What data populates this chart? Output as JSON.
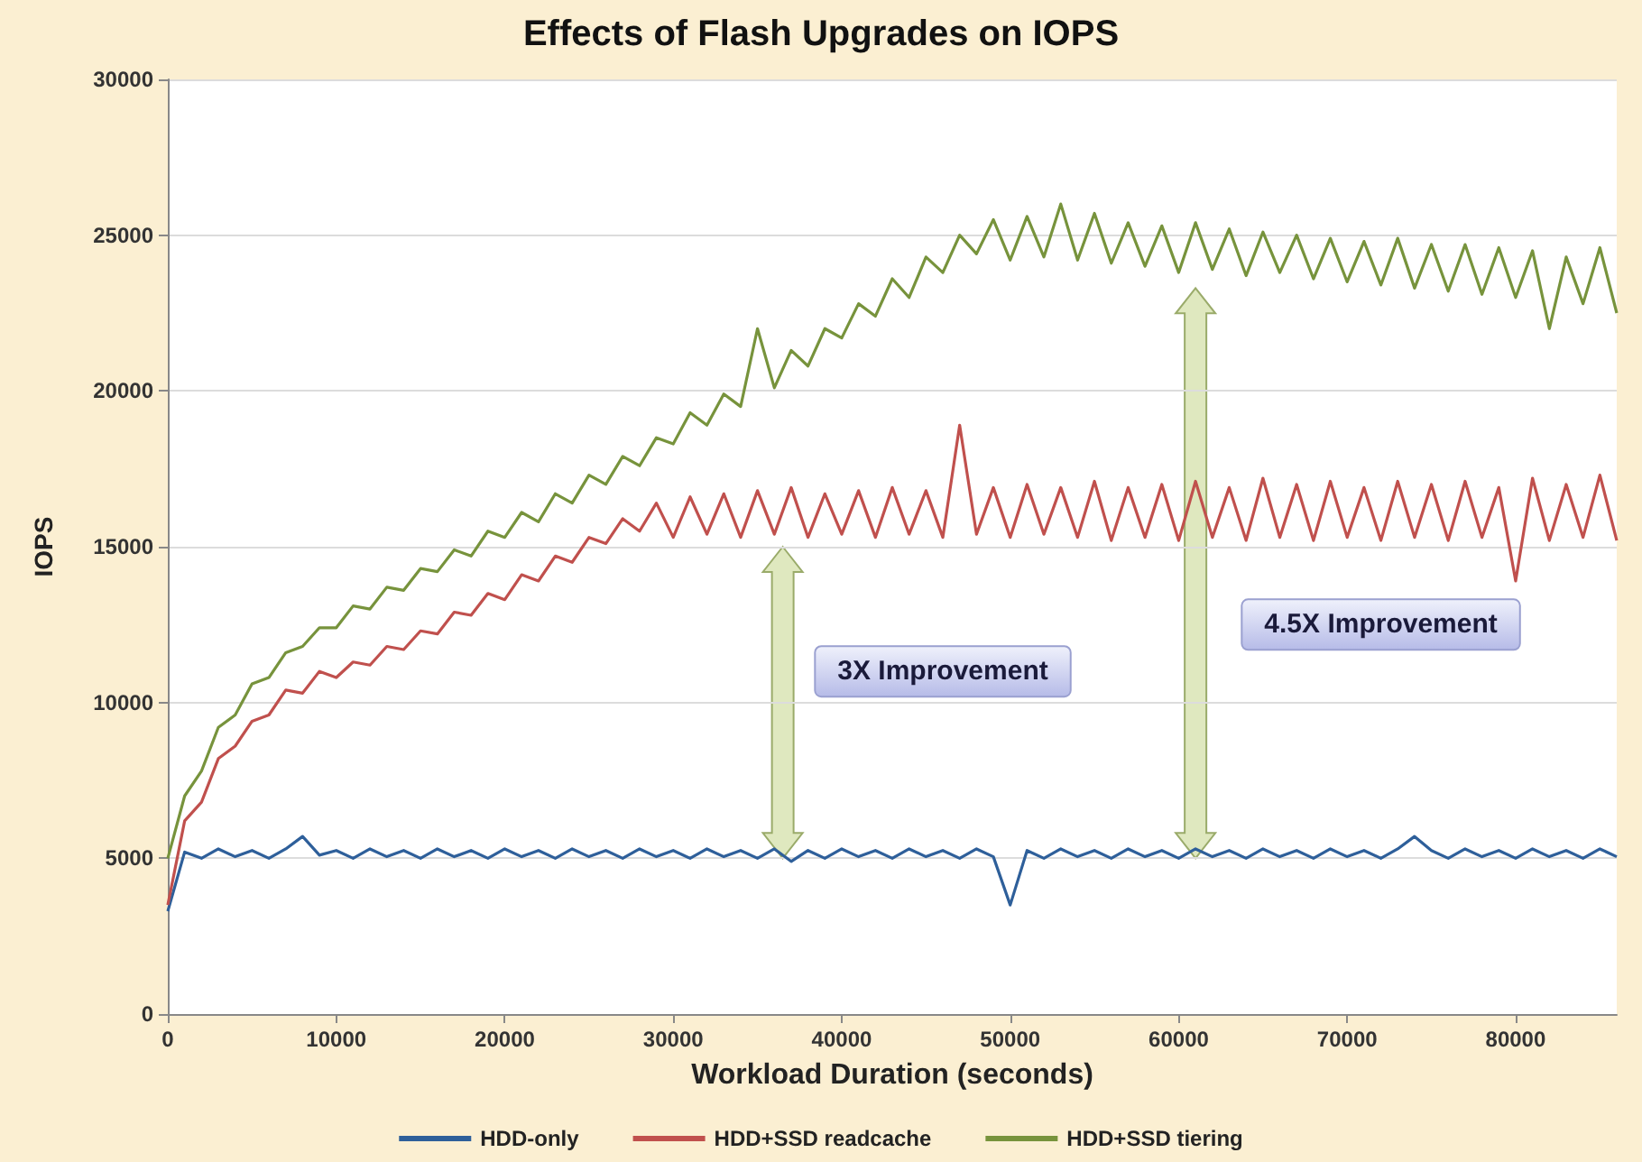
{
  "chart_data": {
    "type": "line",
    "title": "Effects of Flash Upgrades on IOPS",
    "xlabel": "Workload Duration (seconds)",
    "ylabel": "IOPS",
    "x": [
      0,
      1000,
      2000,
      3000,
      4000,
      5000,
      6000,
      7000,
      8000,
      9000,
      10000,
      11000,
      12000,
      13000,
      14000,
      15000,
      16000,
      17000,
      18000,
      19000,
      20000,
      21000,
      22000,
      23000,
      24000,
      25000,
      26000,
      27000,
      28000,
      29000,
      30000,
      31000,
      32000,
      33000,
      34000,
      35000,
      36000,
      37000,
      38000,
      39000,
      40000,
      41000,
      42000,
      43000,
      44000,
      45000,
      46000,
      47000,
      48000,
      49000,
      50000,
      51000,
      52000,
      53000,
      54000,
      55000,
      56000,
      57000,
      58000,
      59000,
      60000,
      61000,
      62000,
      63000,
      64000,
      65000,
      66000,
      67000,
      68000,
      69000,
      70000,
      71000,
      72000,
      73000,
      74000,
      75000,
      76000,
      77000,
      78000,
      79000,
      80000,
      81000,
      82000,
      83000,
      84000,
      85000,
      86000
    ],
    "series": [
      {
        "name": "HDD-only",
        "color": "#2e5f9a",
        "values": [
          3300,
          5200,
          5000,
          5300,
          5050,
          5250,
          5000,
          5300,
          5700,
          5100,
          5250,
          5000,
          5300,
          5050,
          5250,
          5000,
          5300,
          5050,
          5250,
          5000,
          5300,
          5050,
          5250,
          5000,
          5300,
          5050,
          5250,
          5000,
          5300,
          5050,
          5250,
          5000,
          5300,
          5050,
          5250,
          5000,
          5300,
          4900,
          5250,
          5000,
          5300,
          5050,
          5250,
          5000,
          5300,
          5050,
          5250,
          5000,
          5300,
          5050,
          3500,
          5250,
          5000,
          5300,
          5050,
          5250,
          5000,
          5300,
          5050,
          5250,
          5000,
          5300,
          5050,
          5250,
          5000,
          5300,
          5050,
          5250,
          5000,
          5300,
          5050,
          5250,
          5000,
          5300,
          5700,
          5250,
          5000,
          5300,
          5050,
          5250,
          5000,
          5300,
          5050,
          5250,
          5000,
          5300,
          5050
        ]
      },
      {
        "name": "HDD+SSD readcache",
        "color": "#c0504d",
        "values": [
          3500,
          6200,
          6800,
          8200,
          8600,
          9400,
          9600,
          10400,
          10300,
          11000,
          10800,
          11300,
          11200,
          11800,
          11700,
          12300,
          12200,
          12900,
          12800,
          13500,
          13300,
          14100,
          13900,
          14700,
          14500,
          15300,
          15100,
          15900,
          15500,
          16400,
          15300,
          16600,
          15400,
          16700,
          15300,
          16800,
          15400,
          16900,
          15300,
          16700,
          15400,
          16800,
          15300,
          16900,
          15400,
          16800,
          15300,
          18900,
          15400,
          16900,
          15300,
          17000,
          15400,
          16900,
          15300,
          17100,
          15200,
          16900,
          15300,
          17000,
          15200,
          17100,
          15300,
          16900,
          15200,
          17200,
          15300,
          17000,
          15200,
          17100,
          15300,
          16900,
          15200,
          17100,
          15300,
          17000,
          15200,
          17100,
          15300,
          16900,
          13900,
          17200,
          15200,
          17000,
          15300,
          17300,
          15200
        ]
      },
      {
        "name": "HDD+SSD tiering",
        "color": "#77933c",
        "values": [
          5000,
          7000,
          7800,
          9200,
          9600,
          10600,
          10800,
          11600,
          11800,
          12400,
          12400,
          13100,
          13000,
          13700,
          13600,
          14300,
          14200,
          14900,
          14700,
          15500,
          15300,
          16100,
          15800,
          16700,
          16400,
          17300,
          17000,
          17900,
          17600,
          18500,
          18300,
          19300,
          18900,
          19900,
          19500,
          22000,
          20100,
          21300,
          20800,
          22000,
          21700,
          22800,
          22400,
          23600,
          23000,
          24300,
          23800,
          25000,
          24400,
          25500,
          24200,
          25600,
          24300,
          26000,
          24200,
          25700,
          24100,
          25400,
          24000,
          25300,
          23800,
          25400,
          23900,
          25200,
          23700,
          25100,
          23800,
          25000,
          23600,
          24900,
          23500,
          24800,
          23400,
          24900,
          23300,
          24700,
          23200,
          24700,
          23100,
          24600,
          23000,
          24500,
          22000,
          24300,
          22800,
          24600,
          22500
        ]
      }
    ],
    "annotations": [
      "3X Improvement",
      "4.5X Improvement"
    ],
    "xlim": [
      0,
      86000
    ],
    "xticks": [
      0,
      10000,
      20000,
      30000,
      40000,
      50000,
      60000,
      70000,
      80000
    ],
    "ylim": [
      0,
      30000
    ],
    "yticks": [
      0,
      5000,
      10000,
      15000,
      20000,
      25000,
      30000
    ],
    "grid": "y",
    "legend": "bottom"
  }
}
